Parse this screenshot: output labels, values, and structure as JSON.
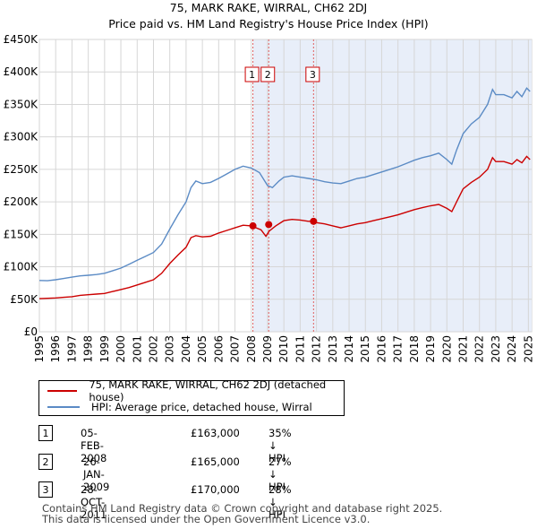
{
  "chart_data": {
    "type": "line",
    "title": "75, MARK RAKE, WIRRAL, CH62 2DJ",
    "subtitle": "Price paid vs. HM Land Registry's House Price Index (HPI)",
    "xlim": [
      1995.0,
      2025.2
    ],
    "ylim": [
      0,
      450000
    ],
    "y_ticks": [
      {
        "value": 0,
        "label": "£0"
      },
      {
        "value": 50000,
        "label": "£50K"
      },
      {
        "value": 100000,
        "label": "£100K"
      },
      {
        "value": 150000,
        "label": "£150K"
      },
      {
        "value": 200000,
        "label": "£200K"
      },
      {
        "value": 250000,
        "label": "£250K"
      },
      {
        "value": 300000,
        "label": "£300K"
      },
      {
        "value": 350000,
        "label": "£350K"
      },
      {
        "value": 400000,
        "label": "£400K"
      },
      {
        "value": 450000,
        "label": "£450K"
      }
    ],
    "x_ticks": [
      "1995",
      "1996",
      "1997",
      "1998",
      "1999",
      "2000",
      "2001",
      "2002",
      "2003",
      "2004",
      "2005",
      "2006",
      "2007",
      "2008",
      "2009",
      "2010",
      "2011",
      "2012",
      "2013",
      "2014",
      "2015",
      "2016",
      "2017",
      "2018",
      "2019",
      "2020",
      "2021",
      "2022",
      "2023",
      "2024",
      "2025"
    ],
    "shaded_from": 2008.1,
    "grid": true,
    "series": [
      {
        "name": "75, MARK RAKE, WIRRAL, CH62 2DJ (detached house)",
        "color": "#cc0000",
        "points": [
          [
            1995.0,
            51000
          ],
          [
            1995.5,
            51500
          ],
          [
            1996.0,
            52000
          ],
          [
            1996.5,
            53000
          ],
          [
            1997.0,
            54000
          ],
          [
            1997.5,
            56000
          ],
          [
            1998.0,
            57000
          ],
          [
            1998.5,
            58000
          ],
          [
            1999.0,
            59000
          ],
          [
            1999.5,
            62000
          ],
          [
            2000.0,
            65000
          ],
          [
            2000.5,
            68000
          ],
          [
            2001.0,
            72000
          ],
          [
            2001.5,
            76000
          ],
          [
            2002.0,
            80000
          ],
          [
            2002.5,
            90000
          ],
          [
            2003.0,
            105000
          ],
          [
            2003.5,
            118000
          ],
          [
            2004.0,
            130000
          ],
          [
            2004.3,
            145000
          ],
          [
            2004.6,
            148000
          ],
          [
            2005.0,
            146000
          ],
          [
            2005.5,
            147000
          ],
          [
            2006.0,
            152000
          ],
          [
            2006.5,
            156000
          ],
          [
            2007.0,
            160000
          ],
          [
            2007.5,
            164000
          ],
          [
            2008.0,
            163000
          ],
          [
            2008.3,
            160000
          ],
          [
            2008.6,
            157000
          ],
          [
            2008.9,
            147000
          ],
          [
            2009.1,
            155000
          ],
          [
            2009.5,
            163000
          ],
          [
            2010.0,
            171000
          ],
          [
            2010.5,
            173000
          ],
          [
            2011.0,
            172000
          ],
          [
            2011.5,
            170000
          ],
          [
            2011.8,
            170000
          ],
          [
            2012.0,
            168000
          ],
          [
            2012.5,
            166000
          ],
          [
            2013.0,
            163000
          ],
          [
            2013.5,
            160000
          ],
          [
            2014.0,
            163000
          ],
          [
            2014.5,
            166000
          ],
          [
            2015.0,
            168000
          ],
          [
            2015.5,
            171000
          ],
          [
            2016.0,
            174000
          ],
          [
            2016.5,
            177000
          ],
          [
            2017.0,
            180000
          ],
          [
            2017.5,
            184000
          ],
          [
            2018.0,
            188000
          ],
          [
            2018.5,
            191000
          ],
          [
            2019.0,
            194000
          ],
          [
            2019.5,
            196000
          ],
          [
            2020.0,
            190000
          ],
          [
            2020.3,
            185000
          ],
          [
            2020.6,
            200000
          ],
          [
            2021.0,
            220000
          ],
          [
            2021.5,
            230000
          ],
          [
            2022.0,
            238000
          ],
          [
            2022.5,
            250000
          ],
          [
            2022.8,
            268000
          ],
          [
            2023.0,
            262000
          ],
          [
            2023.5,
            262000
          ],
          [
            2024.0,
            258000
          ],
          [
            2024.3,
            265000
          ],
          [
            2024.6,
            260000
          ],
          [
            2024.9,
            270000
          ],
          [
            2025.1,
            265000
          ]
        ]
      },
      {
        "name": "HPI: Average price, detached house, Wirral",
        "color": "#5b8bc5",
        "points": [
          [
            1995.0,
            79000
          ],
          [
            1995.5,
            78500
          ],
          [
            1996.0,
            80000
          ],
          [
            1996.5,
            82000
          ],
          [
            1997.0,
            84000
          ],
          [
            1997.5,
            86000
          ],
          [
            1998.0,
            87000
          ],
          [
            1998.5,
            88000
          ],
          [
            1999.0,
            90000
          ],
          [
            1999.5,
            94000
          ],
          [
            2000.0,
            98000
          ],
          [
            2000.5,
            104000
          ],
          [
            2001.0,
            110000
          ],
          [
            2001.5,
            116000
          ],
          [
            2002.0,
            122000
          ],
          [
            2002.5,
            135000
          ],
          [
            2003.0,
            158000
          ],
          [
            2003.5,
            180000
          ],
          [
            2004.0,
            200000
          ],
          [
            2004.3,
            222000
          ],
          [
            2004.6,
            232000
          ],
          [
            2005.0,
            228000
          ],
          [
            2005.5,
            230000
          ],
          [
            2006.0,
            236000
          ],
          [
            2006.5,
            243000
          ],
          [
            2007.0,
            250000
          ],
          [
            2007.5,
            255000
          ],
          [
            2008.0,
            252000
          ],
          [
            2008.5,
            245000
          ],
          [
            2009.0,
            225000
          ],
          [
            2009.3,
            222000
          ],
          [
            2009.7,
            232000
          ],
          [
            2010.0,
            238000
          ],
          [
            2010.5,
            240000
          ],
          [
            2011.0,
            238000
          ],
          [
            2011.5,
            236000
          ],
          [
            2012.0,
            234000
          ],
          [
            2012.5,
            231000
          ],
          [
            2013.0,
            229000
          ],
          [
            2013.5,
            228000
          ],
          [
            2014.0,
            232000
          ],
          [
            2014.5,
            236000
          ],
          [
            2015.0,
            238000
          ],
          [
            2015.5,
            242000
          ],
          [
            2016.0,
            246000
          ],
          [
            2016.5,
            250000
          ],
          [
            2017.0,
            254000
          ],
          [
            2017.5,
            259000
          ],
          [
            2018.0,
            264000
          ],
          [
            2018.5,
            268000
          ],
          [
            2019.0,
            271000
          ],
          [
            2019.5,
            275000
          ],
          [
            2020.0,
            265000
          ],
          [
            2020.3,
            258000
          ],
          [
            2020.6,
            280000
          ],
          [
            2021.0,
            305000
          ],
          [
            2021.5,
            320000
          ],
          [
            2022.0,
            330000
          ],
          [
            2022.5,
            350000
          ],
          [
            2022.8,
            373000
          ],
          [
            2023.0,
            365000
          ],
          [
            2023.5,
            365000
          ],
          [
            2024.0,
            360000
          ],
          [
            2024.3,
            370000
          ],
          [
            2024.6,
            362000
          ],
          [
            2024.9,
            375000
          ],
          [
            2025.1,
            370000
          ]
        ]
      }
    ],
    "transactions": [
      {
        "num": "1",
        "x": 2008.1,
        "y": 163000
      },
      {
        "num": "2",
        "x": 2009.07,
        "y": 165000
      },
      {
        "num": "3",
        "x": 2011.82,
        "y": 170000
      }
    ]
  },
  "legend": {
    "items": [
      {
        "label": "75, MARK RAKE, WIRRAL, CH62 2DJ (detached house)",
        "color": "#cc0000"
      },
      {
        "label": "HPI: Average price, detached house, Wirral",
        "color": "#5b8bc5"
      }
    ]
  },
  "transactions_table": [
    {
      "num": "1",
      "date": "05-FEB-2008",
      "price": "£163,000",
      "hpi": "35% ↓ HPI"
    },
    {
      "num": "2",
      "date": "26-JAN-2009",
      "price": "£165,000",
      "hpi": "27% ↓ HPI"
    },
    {
      "num": "3",
      "date": "28-OCT-2011",
      "price": "£170,000",
      "hpi": "28% ↓ HPI"
    }
  ],
  "footer": {
    "line1": "Contains HM Land Registry data © Crown copyright and database right 2025.",
    "line2": "This data is licensed under the Open Government Licence v3.0."
  }
}
